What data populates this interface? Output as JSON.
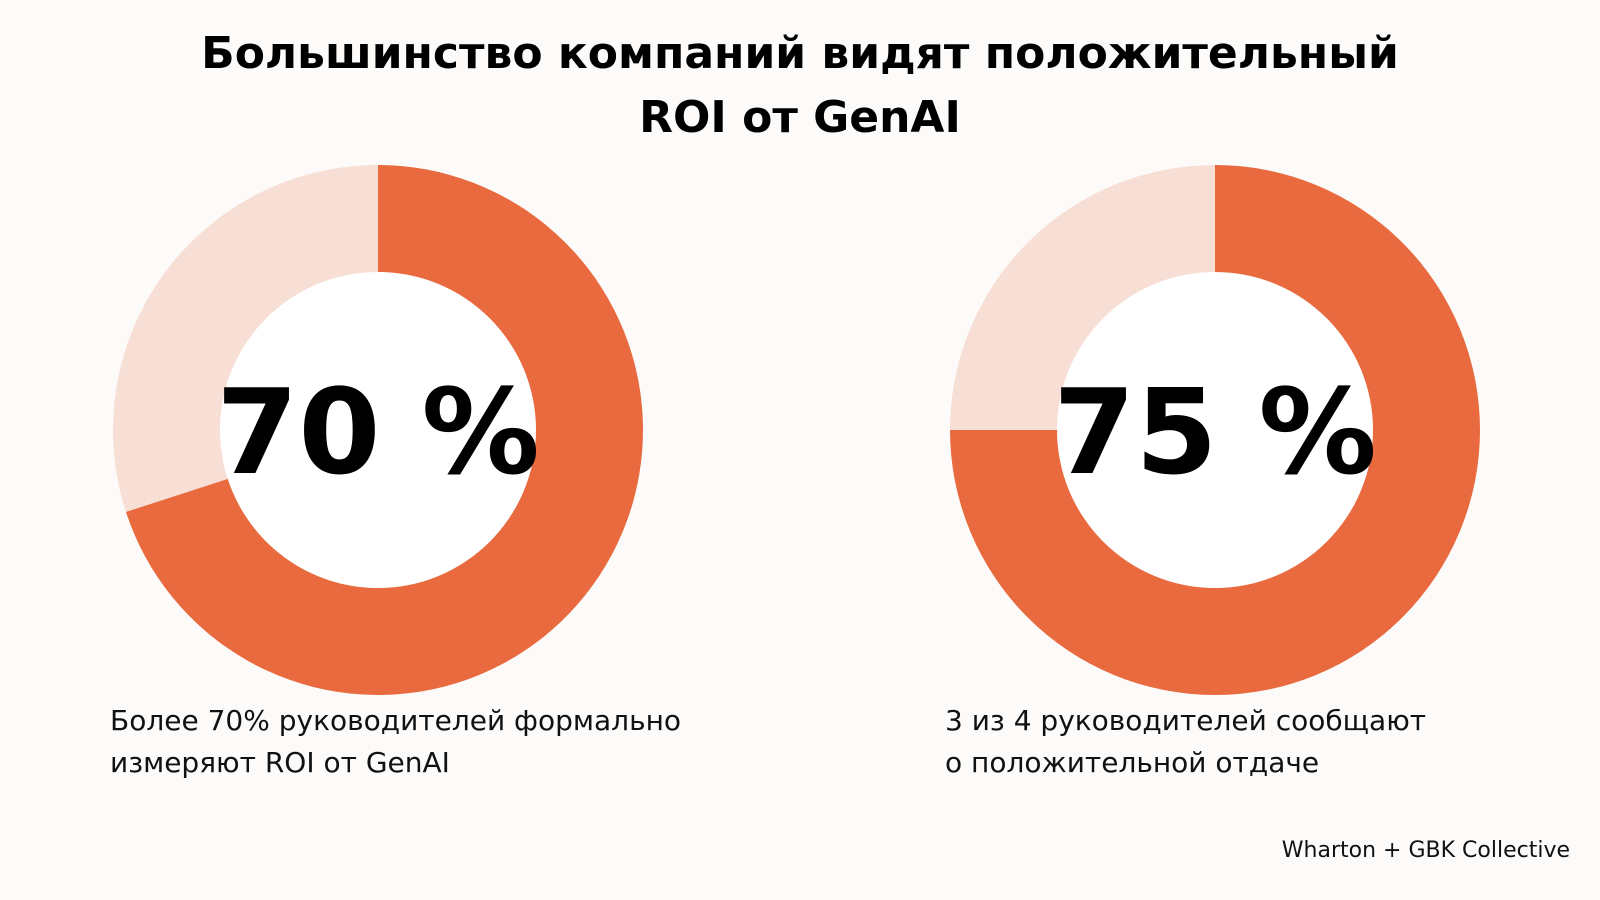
{
  "title_lines": [
    "Большинство компаний видят положительный",
    "ROI от GenAI"
  ],
  "colors": {
    "accent": "#e86a3e",
    "remainder": "#f8dfd5",
    "hole": "#ffffff",
    "background": "#fdfbf9"
  },
  "chart_data": [
    {
      "type": "pie",
      "center_label": "70 %",
      "values": [
        70,
        30
      ],
      "caption_lines": [
        "Более 70% руководителей формально",
        "измеряют ROI от GenAI"
      ]
    },
    {
      "type": "pie",
      "center_label": "75 %",
      "values": [
        75,
        25
      ],
      "caption_lines": [
        "3 из 4 руководителей сообщают",
        "о положительной отдаче"
      ]
    }
  ],
  "source": "Wharton + GBK Collective"
}
